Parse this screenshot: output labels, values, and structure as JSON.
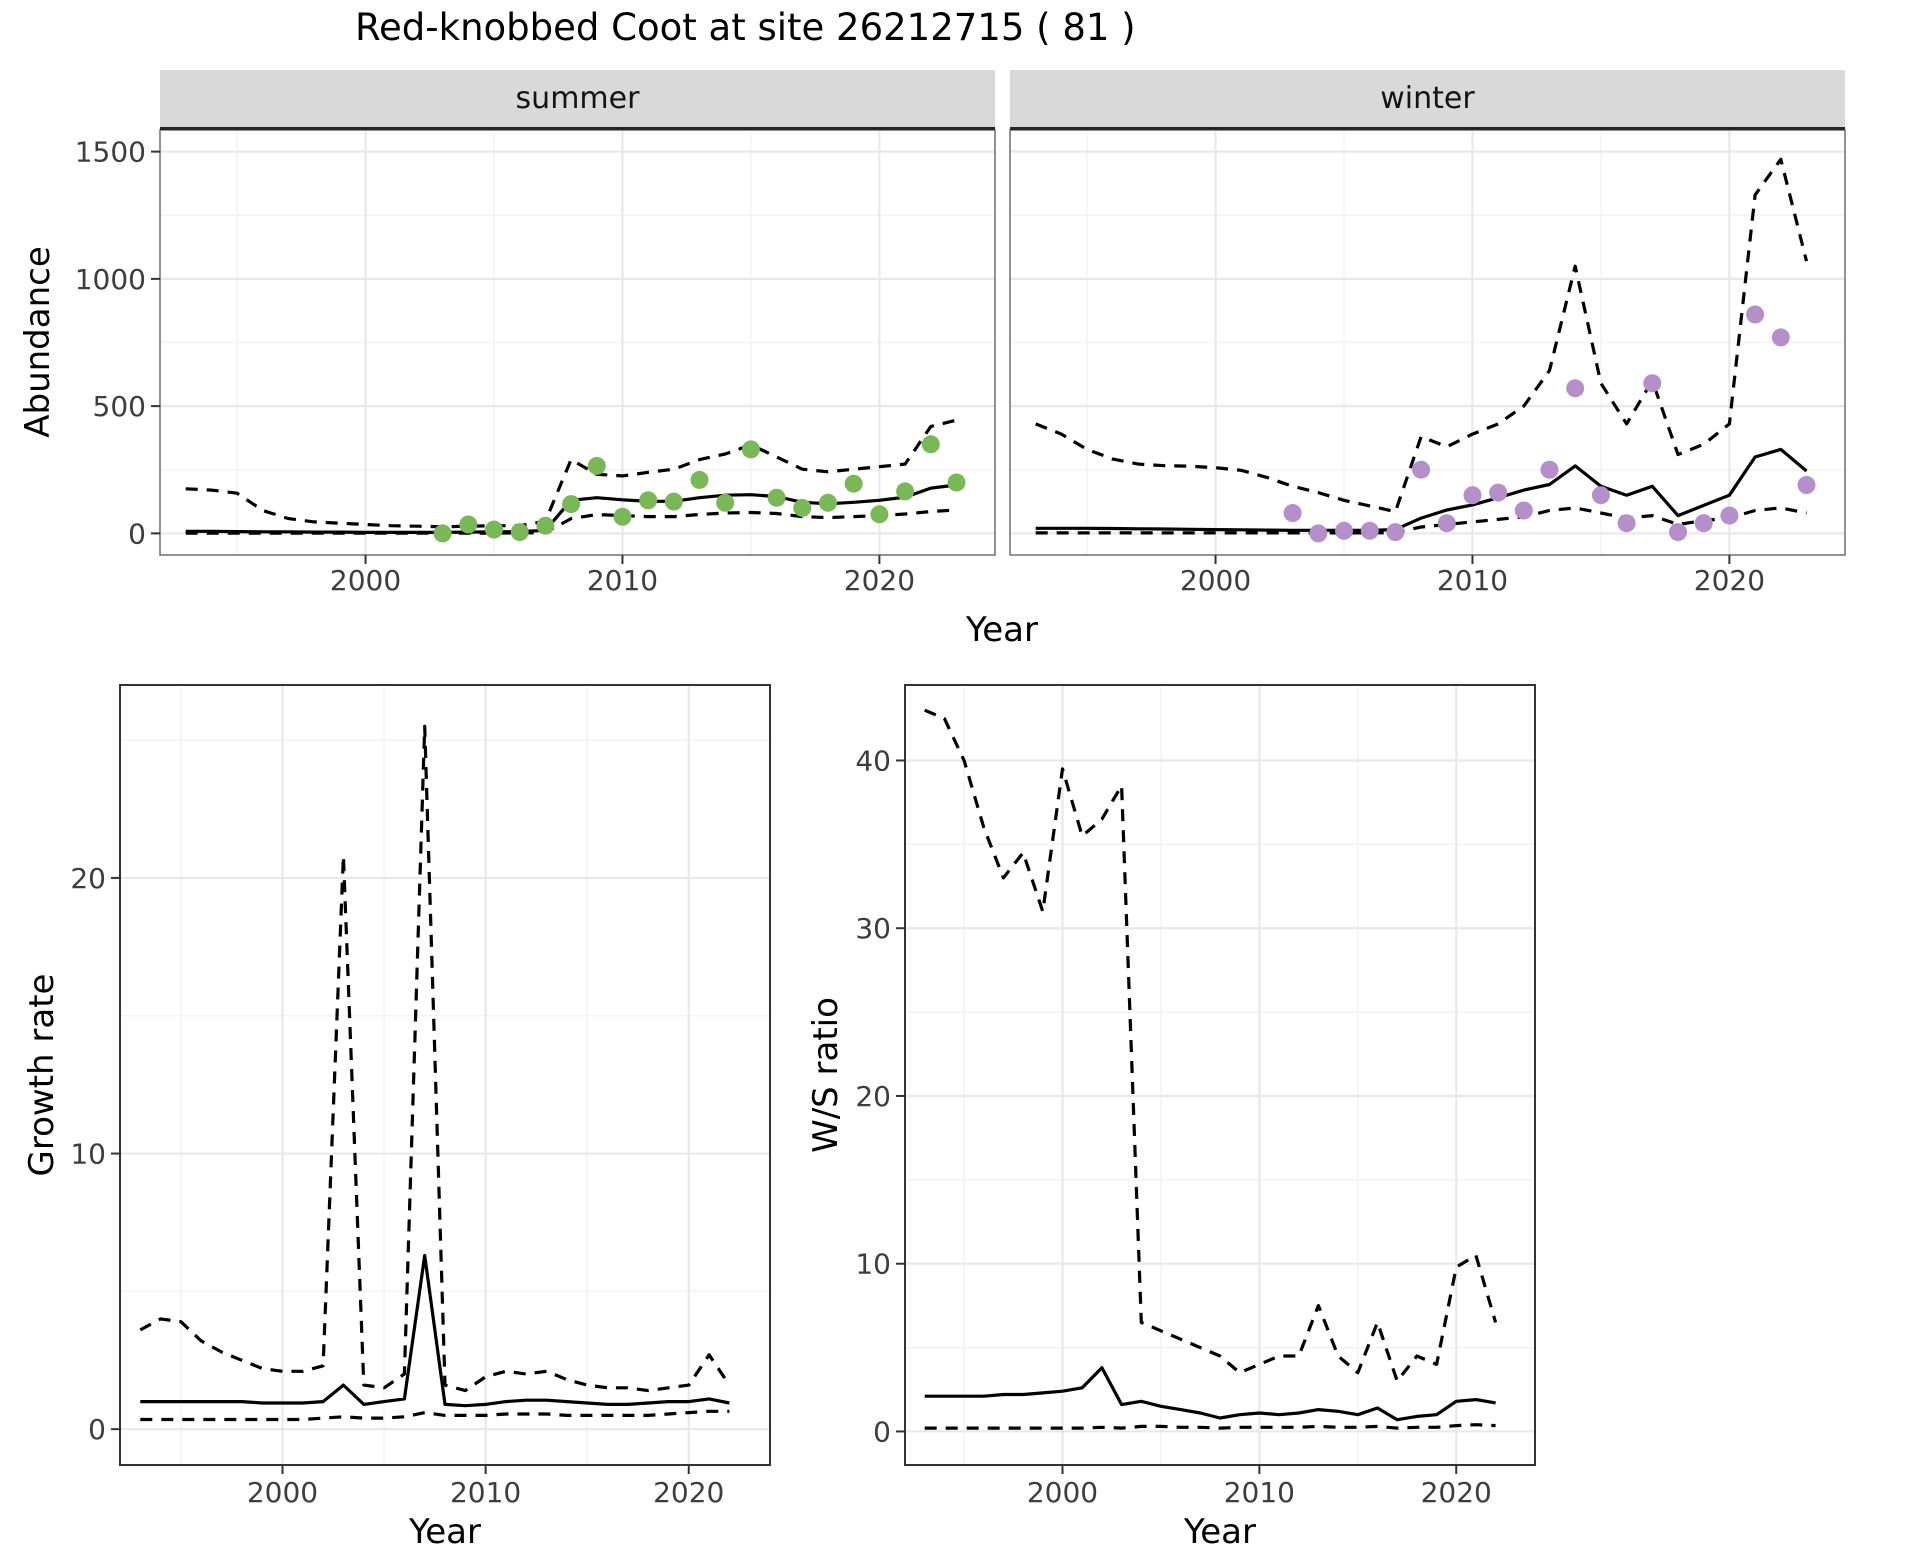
{
  "title": "Red-knobbed Coot at site 26212715 ( 81 )",
  "colors": {
    "summer_point": "#7ab857",
    "winter_point": "#b48fc9",
    "line": "#000000",
    "grid_major": "#e8e8e8",
    "grid_minor": "#f3f3f3",
    "strip_bg": "#d9d9d9",
    "tick_text": "#3d3d3d"
  },
  "chart_data": [
    {
      "id": "abundance",
      "type": "line",
      "xlabel": "Year",
      "ylabel": "Abundance",
      "xlim": [
        1992,
        2024.5
      ],
      "ylim": [
        -85,
        1585
      ],
      "xticks": [
        2000,
        2010,
        2020
      ],
      "yticks": [
        0,
        500,
        1000,
        1500
      ],
      "grid": true,
      "legend": "none",
      "facets": [
        {
          "label": "summer",
          "point_color": "#7ab857",
          "x": [
            1993,
            1994,
            1995,
            1996,
            1997,
            1998,
            1999,
            2000,
            2001,
            2002,
            2003,
            2004,
            2005,
            2006,
            2007,
            2008,
            2009,
            2010,
            2011,
            2012,
            2013,
            2014,
            2015,
            2016,
            2017,
            2018,
            2019,
            2020,
            2021,
            2022,
            2023
          ],
          "series": [
            {
              "name": "fit",
              "style": "solid",
              "values": [
                8,
                8,
                7,
                6,
                6,
                5,
                5,
                4,
                4,
                4,
                4,
                5,
                6,
                7,
                12,
                130,
                140,
                132,
                126,
                126,
                140,
                150,
                152,
                145,
                122,
                116,
                122,
                130,
                142,
                178,
                190
              ]
            },
            {
              "name": "upper-ci",
              "style": "dashed",
              "values": [
                175,
                170,
                158,
                90,
                58,
                45,
                40,
                35,
                30,
                28,
                26,
                28,
                30,
                30,
                48,
                290,
                232,
                226,
                240,
                252,
                290,
                312,
                348,
                300,
                252,
                242,
                252,
                262,
                272,
                420,
                445
              ]
            },
            {
              "name": "lower-ci",
              "style": "dashed",
              "values": [
                1,
                1,
                1,
                1,
                1,
                1,
                1,
                1,
                1,
                1,
                1,
                1,
                1,
                2,
                3,
                58,
                74,
                70,
                66,
                66,
                74,
                80,
                82,
                78,
                66,
                62,
                66,
                70,
                76,
                86,
                92
              ]
            }
          ],
          "points": {
            "name": "observed",
            "x": [
              2003,
              2004,
              2005,
              2006,
              2007,
              2008,
              2009,
              2010,
              2011,
              2012,
              2013,
              2014,
              2015,
              2016,
              2017,
              2018,
              2019,
              2020,
              2021,
              2022,
              2023
            ],
            "y": [
              0,
              35,
              15,
              5,
              30,
              115,
              265,
              65,
              130,
              125,
              210,
              120,
              330,
              140,
              100,
              120,
              195,
              75,
              165,
              350,
              200
            ]
          }
        },
        {
          "label": "winter",
          "point_color": "#b48fc9",
          "x": [
            1993,
            1994,
            1995,
            1996,
            1997,
            1998,
            1999,
            2000,
            2001,
            2002,
            2003,
            2004,
            2005,
            2006,
            2007,
            2008,
            2009,
            2010,
            2011,
            2012,
            2013,
            2014,
            2015,
            2016,
            2017,
            2018,
            2019,
            2020,
            2021,
            2022,
            2023
          ],
          "series": [
            {
              "name": "fit",
              "style": "solid",
              "values": [
                20,
                20,
                20,
                19,
                18,
                17,
                16,
                15,
                14,
                13,
                12,
                12,
                12,
                12,
                15,
                60,
                92,
                112,
                140,
                170,
                192,
                265,
                185,
                150,
                185,
                70,
                110,
                150,
                300,
                330,
                245
              ]
            },
            {
              "name": "upper-ci",
              "style": "dashed",
              "values": [
                430,
                390,
                330,
                292,
                272,
                266,
                264,
                258,
                248,
                220,
                185,
                160,
                130,
                108,
                85,
                380,
                340,
                390,
                430,
                500,
                640,
                1050,
                590,
                430,
                600,
                310,
                350,
                430,
                1330,
                1470,
                1070
              ]
            },
            {
              "name": "lower-ci",
              "style": "dashed",
              "values": [
                2,
                2,
                2,
                2,
                2,
                2,
                2,
                2,
                2,
                2,
                2,
                2,
                2,
                2,
                3,
                25,
                35,
                45,
                55,
                65,
                90,
                100,
                80,
                60,
                70,
                35,
                50,
                60,
                90,
                100,
                80
              ]
            }
          ],
          "points": {
            "name": "observed",
            "x": [
              2003,
              2004,
              2005,
              2006,
              2007,
              2008,
              2009,
              2010,
              2011,
              2012,
              2013,
              2014,
              2015,
              2016,
              2017,
              2018,
              2019,
              2020,
              2021,
              2022,
              2023
            ],
            "y": [
              80,
              0,
              10,
              10,
              5,
              250,
              40,
              150,
              160,
              90,
              250,
              570,
              150,
              40,
              590,
              5,
              40,
              70,
              860,
              770,
              190
            ]
          }
        }
      ]
    },
    {
      "id": "growth-rate",
      "type": "line",
      "xlabel": "Year",
      "ylabel": "Growth rate",
      "xlim": [
        1992,
        2024
      ],
      "ylim": [
        -1.3,
        27
      ],
      "xticks": [
        2000,
        2010,
        2020
      ],
      "yticks": [
        0,
        10,
        20
      ],
      "grid": true,
      "x": [
        1993,
        1994,
        1995,
        1996,
        1997,
        1998,
        1999,
        2000,
        2001,
        2002,
        2003,
        2004,
        2005,
        2006,
        2007,
        2008,
        2009,
        2010,
        2011,
        2012,
        2013,
        2014,
        2015,
        2016,
        2017,
        2018,
        2019,
        2020,
        2021,
        2022
      ],
      "series": [
        {
          "name": "fit",
          "style": "solid",
          "values": [
            1.0,
            1.0,
            1.0,
            1.0,
            1.0,
            1.0,
            0.95,
            0.95,
            0.95,
            1.0,
            1.6,
            0.9,
            1.0,
            1.1,
            6.3,
            0.9,
            0.85,
            0.9,
            1.0,
            1.05,
            1.05,
            1.0,
            0.95,
            0.9,
            0.9,
            0.95,
            1.0,
            1.0,
            1.1,
            0.95
          ]
        },
        {
          "name": "upper-ci",
          "style": "dashed",
          "values": [
            3.6,
            4.0,
            3.9,
            3.2,
            2.8,
            2.5,
            2.2,
            2.1,
            2.1,
            2.3,
            20.8,
            1.6,
            1.5,
            2.0,
            25.5,
            1.6,
            1.4,
            1.9,
            2.1,
            2.0,
            2.1,
            1.8,
            1.6,
            1.5,
            1.5,
            1.4,
            1.5,
            1.6,
            2.7,
            1.6
          ]
        },
        {
          "name": "lower-ci",
          "style": "dashed",
          "values": [
            0.35,
            0.35,
            0.35,
            0.35,
            0.35,
            0.35,
            0.35,
            0.35,
            0.35,
            0.4,
            0.45,
            0.4,
            0.4,
            0.45,
            0.6,
            0.5,
            0.5,
            0.5,
            0.55,
            0.55,
            0.55,
            0.5,
            0.5,
            0.5,
            0.5,
            0.5,
            0.55,
            0.6,
            0.65,
            0.65
          ]
        }
      ]
    },
    {
      "id": "ws-ratio",
      "type": "line",
      "xlabel": "Year",
      "ylabel": "W/S ratio",
      "xlim": [
        1992,
        2024
      ],
      "ylim": [
        -2,
        44.5
      ],
      "xticks": [
        2000,
        2010,
        2020
      ],
      "yticks": [
        0,
        10,
        20,
        30,
        40
      ],
      "grid": true,
      "x": [
        1993,
        1994,
        1995,
        1996,
        1997,
        1998,
        1999,
        2000,
        2001,
        2002,
        2003,
        2004,
        2005,
        2006,
        2007,
        2008,
        2009,
        2010,
        2011,
        2012,
        2013,
        2014,
        2015,
        2016,
        2017,
        2018,
        2019,
        2020,
        2021,
        2022
      ],
      "series": [
        {
          "name": "fit",
          "style": "solid",
          "values": [
            2.1,
            2.1,
            2.1,
            2.1,
            2.2,
            2.2,
            2.3,
            2.4,
            2.6,
            3.8,
            1.6,
            1.8,
            1.5,
            1.3,
            1.1,
            0.8,
            1.0,
            1.1,
            1.0,
            1.1,
            1.3,
            1.2,
            1.0,
            1.4,
            0.7,
            0.9,
            1.0,
            1.8,
            1.9,
            1.7
          ]
        },
        {
          "name": "upper-ci",
          "style": "dashed",
          "values": [
            43,
            42.5,
            40,
            36,
            33,
            34.5,
            31,
            39.5,
            35.5,
            36.5,
            38.5,
            6.5,
            6,
            5.5,
            5,
            4.5,
            3.5,
            4,
            4.5,
            4.5,
            7.5,
            4.5,
            3.5,
            6.5,
            3,
            4.5,
            4,
            9.8,
            10.5,
            6.5
          ]
        },
        {
          "name": "lower-ci",
          "style": "dashed",
          "values": [
            0.2,
            0.2,
            0.2,
            0.2,
            0.2,
            0.2,
            0.2,
            0.2,
            0.2,
            0.25,
            0.2,
            0.3,
            0.3,
            0.25,
            0.25,
            0.2,
            0.25,
            0.25,
            0.25,
            0.25,
            0.3,
            0.25,
            0.25,
            0.3,
            0.2,
            0.25,
            0.25,
            0.35,
            0.4,
            0.35
          ]
        }
      ]
    }
  ]
}
